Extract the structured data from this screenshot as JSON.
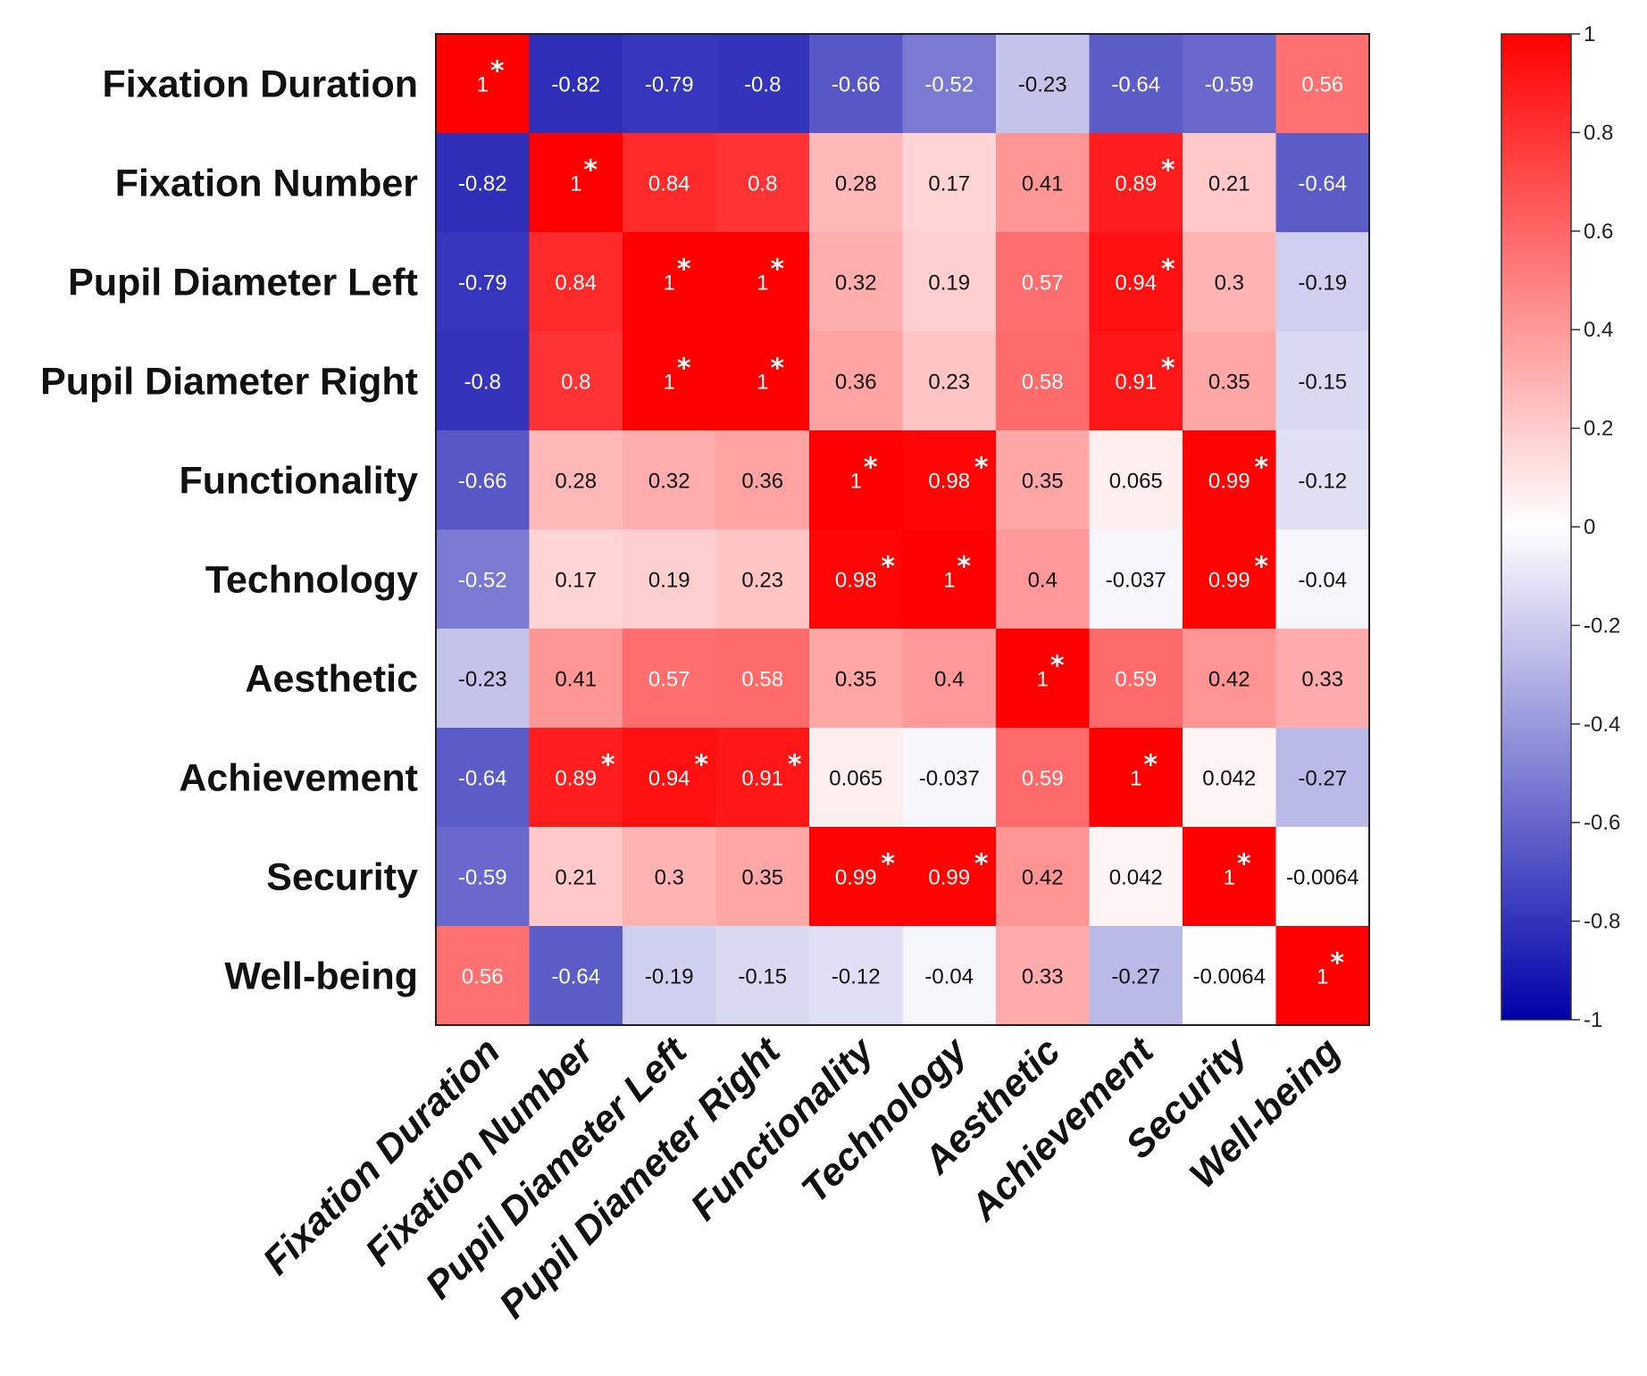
{
  "chart_data": {
    "type": "heatmap",
    "title": "",
    "row_labels": [
      "Fixation Duration",
      "Fixation Number",
      "Pupil Diameter Left",
      "Pupil Diameter Right",
      "Functionality",
      "Technology",
      "Aesthetic",
      "Achievement",
      "Security",
      "Well-being"
    ],
    "col_labels": [
      "Fixation Duration",
      "Fixation Number",
      "Pupil Diameter Left",
      "Pupil Diameter Right",
      "Functionality",
      "Technology",
      "Aesthetic",
      "Achievement",
      "Security",
      "Well-being"
    ],
    "values": [
      [
        1,
        -0.82,
        -0.79,
        -0.8,
        -0.66,
        -0.52,
        -0.23,
        -0.64,
        -0.59,
        0.56
      ],
      [
        -0.82,
        1,
        0.84,
        0.8,
        0.28,
        0.17,
        0.41,
        0.89,
        0.21,
        -0.64
      ],
      [
        -0.79,
        0.84,
        1,
        1,
        0.32,
        0.19,
        0.57,
        0.94,
        0.3,
        -0.19
      ],
      [
        -0.8,
        0.8,
        1,
        1,
        0.36,
        0.23,
        0.58,
        0.91,
        0.35,
        -0.15
      ],
      [
        -0.66,
        0.28,
        0.32,
        0.36,
        1,
        0.98,
        0.35,
        0.065,
        0.99,
        -0.12
      ],
      [
        -0.52,
        0.17,
        0.19,
        0.23,
        0.98,
        1,
        0.4,
        -0.037,
        0.99,
        -0.04
      ],
      [
        -0.23,
        0.41,
        0.57,
        0.58,
        0.35,
        0.4,
        1,
        0.59,
        0.42,
        0.33
      ],
      [
        -0.64,
        0.89,
        0.94,
        0.91,
        0.065,
        -0.037,
        0.59,
        1,
        0.042,
        -0.27
      ],
      [
        -0.59,
        0.21,
        0.3,
        0.35,
        0.99,
        0.99,
        0.42,
        0.042,
        1,
        -0.0064
      ],
      [
        0.56,
        -0.64,
        -0.19,
        -0.15,
        -0.12,
        -0.04,
        0.33,
        -0.27,
        -0.0064,
        1
      ]
    ],
    "significant": [
      [
        1,
        0,
        0,
        0,
        0,
        0,
        0,
        0,
        0,
        0
      ],
      [
        0,
        1,
        0,
        0,
        0,
        0,
        0,
        1,
        0,
        0
      ],
      [
        0,
        0,
        1,
        1,
        0,
        0,
        0,
        1,
        0,
        0
      ],
      [
        0,
        0,
        1,
        1,
        0,
        0,
        0,
        1,
        0,
        0
      ],
      [
        0,
        0,
        0,
        0,
        1,
        1,
        0,
        0,
        1,
        0
      ],
      [
        0,
        0,
        0,
        0,
        1,
        1,
        0,
        0,
        1,
        0
      ],
      [
        0,
        0,
        0,
        0,
        0,
        0,
        1,
        0,
        0,
        0
      ],
      [
        0,
        1,
        1,
        1,
        0,
        0,
        0,
        1,
        0,
        0
      ],
      [
        0,
        0,
        0,
        0,
        1,
        1,
        0,
        0,
        1,
        0
      ],
      [
        0,
        0,
        0,
        0,
        0,
        0,
        0,
        0,
        0,
        1
      ]
    ],
    "significance_marker": "*",
    "colorbar": {
      "range": [
        -1,
        1
      ],
      "ticks": [
        1,
        0.8,
        0.6,
        0.4,
        0.2,
        0,
        -0.2,
        -0.4,
        -0.6,
        -0.8,
        -1
      ],
      "tick_labels": [
        "1",
        "0.8",
        "0.6",
        "0.4",
        "0.2",
        "0",
        "-0.2",
        "-0.4",
        "-0.6",
        "-0.8",
        "-1"
      ],
      "color_low": "#0000aa",
      "color_mid": "#ffffff",
      "color_high": "#ff0000"
    }
  }
}
